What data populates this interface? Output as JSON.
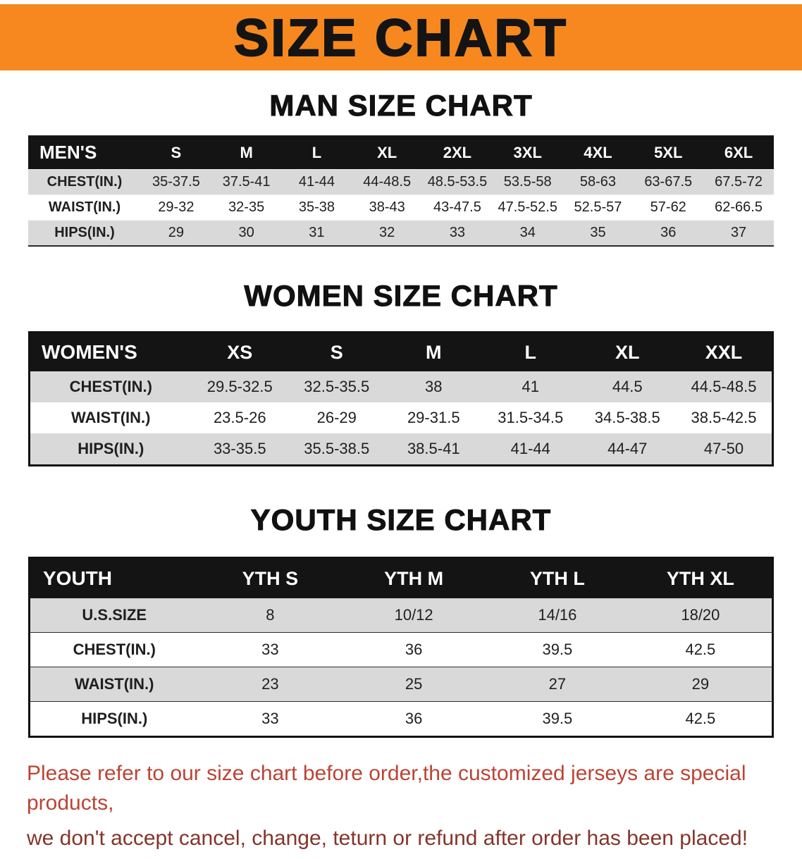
{
  "banner": {
    "title": "SIZE CHART",
    "bg_color": "#f6881f",
    "text_color": "#141414"
  },
  "men": {
    "heading": "MAN SIZE CHART",
    "table": {
      "header": [
        "MEN'S",
        "S",
        "M",
        "L",
        "XL",
        "2XL",
        "3XL",
        "4XL",
        "5XL",
        "6XL"
      ],
      "rows": [
        [
          "CHEST(IN.)",
          "35-37.5",
          "37.5-41",
          "41-44",
          "44-48.5",
          "48.5-53.5",
          "53.5-58",
          "58-63",
          "63-67.5",
          "67.5-72"
        ],
        [
          "WAIST(IN.)",
          "29-32",
          "32-35",
          "35-38",
          "38-43",
          "43-47.5",
          "47.5-52.5",
          "52.5-57",
          "57-62",
          "62-66.5"
        ],
        [
          "HIPS(IN.)",
          "29",
          "30",
          "31",
          "32",
          "33",
          "34",
          "35",
          "36",
          "37"
        ]
      ]
    }
  },
  "women": {
    "heading": "WOMEN SIZE CHART",
    "table": {
      "header": [
        "WOMEN'S",
        "XS",
        "S",
        "M",
        "L",
        "XL",
        "XXL"
      ],
      "rows": [
        [
          "CHEST(IN.)",
          "29.5-32.5",
          "32.5-35.5",
          "38",
          "41",
          "44.5",
          "44.5-48.5"
        ],
        [
          "WAIST(IN.)",
          "23.5-26",
          "26-29",
          "29-31.5",
          "31.5-34.5",
          "34.5-38.5",
          "38.5-42.5"
        ],
        [
          "HIPS(IN.)",
          "33-35.5",
          "35.5-38.5",
          "38.5-41",
          "41-44",
          "44-47",
          "47-50"
        ]
      ]
    }
  },
  "youth": {
    "heading": "YOUTH SIZE CHART",
    "table": {
      "header": [
        "YOUTH",
        "YTH S",
        "YTH M",
        "YTH L",
        "YTH XL"
      ],
      "rows": [
        [
          "U.S.SIZE",
          "8",
          "10/12",
          "14/16",
          "18/20"
        ],
        [
          "CHEST(IN.)",
          "33",
          "36",
          "39.5",
          "42.5"
        ],
        [
          "WAIST(IN.)",
          "23",
          "25",
          "27",
          "29"
        ],
        [
          "HIPS(IN.)",
          "33",
          "36",
          "39.5",
          "42.5"
        ]
      ]
    }
  },
  "footer": {
    "line1": "Please refer to our size chart before order,the customized jerseys are special products,",
    "line2": "we don't accept cancel, change, teturn or refund after order has been placed!",
    "text_color_line1": "#bb4434",
    "text_color_line2": "#84352a"
  },
  "colors": {
    "table_header_bg": "#141414",
    "table_row_alt_bg": "#d9d9d9"
  }
}
